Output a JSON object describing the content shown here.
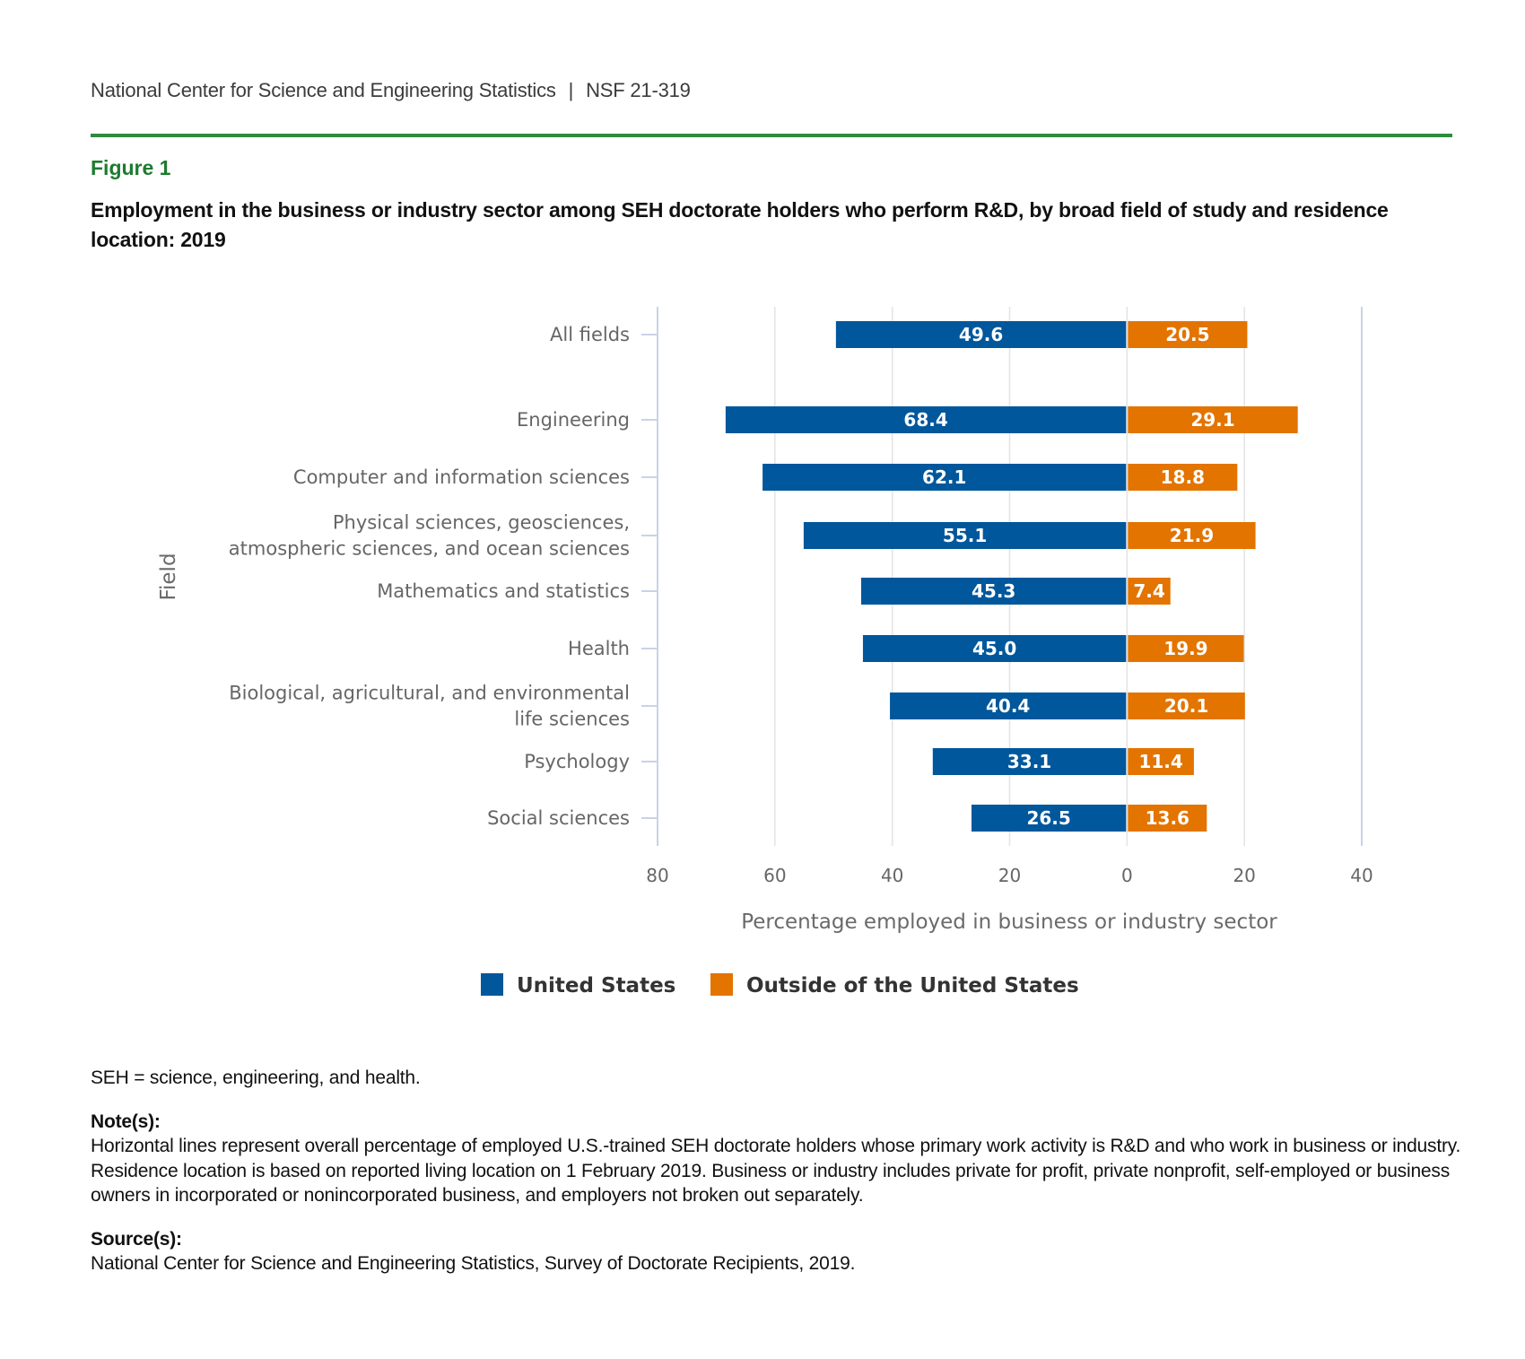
{
  "header": {
    "org": "National Center for Science and Engineering Statistics",
    "separator": "|",
    "report_id": "NSF 21-319"
  },
  "figure": {
    "label": "Figure 1",
    "title": "Employment in the business or industry sector among SEH doctorate holders who perform R&D, by broad field of study and residence location: 2019"
  },
  "colors": {
    "us": "#00579c",
    "outside": "#e37400",
    "grid": "#e3e3e3",
    "axis": "#c9d3e8",
    "rule": "#2e8b3e"
  },
  "chart_data": {
    "type": "bar",
    "orientation": "horizontal-diverging",
    "title": "Employment in the business or industry sector among SEH doctorate holders who perform R&D, by broad field of study and residence location: 2019",
    "xlabel": "Percentage employed in business or industry sector",
    "ylabel": "Field",
    "xlim": [
      -80,
      40
    ],
    "x_ticks": [
      -80,
      -60,
      -40,
      -20,
      0,
      20,
      40
    ],
    "x_tick_labels": [
      "80",
      "60",
      "40",
      "20",
      "0",
      "20",
      "40"
    ],
    "grid": true,
    "legend_position": "bottom-center",
    "categories": [
      [
        "All fields"
      ],
      [
        "Engineering"
      ],
      [
        "Computer and information sciences"
      ],
      [
        "Physical sciences, geosciences,",
        "atmospheric sciences, and ocean sciences"
      ],
      [
        "Mathematics and statistics"
      ],
      [
        "Health"
      ],
      [
        "Biological, agricultural, and environmental",
        "life sciences"
      ],
      [
        "Psychology"
      ],
      [
        "Social sciences"
      ]
    ],
    "series": [
      {
        "name": "United States",
        "direction": "left",
        "values": [
          49.6,
          68.4,
          62.1,
          55.1,
          45.3,
          45.0,
          40.4,
          33.1,
          26.5
        ],
        "labels": [
          "49.6",
          "68.4",
          "62.1",
          "55.1",
          "45.3",
          "45.0",
          "40.4",
          "33.1",
          "26.5"
        ]
      },
      {
        "name": "Outside of the United States",
        "direction": "right",
        "values": [
          20.5,
          29.1,
          18.8,
          21.9,
          7.4,
          19.9,
          20.1,
          11.4,
          13.6
        ],
        "labels": [
          "20.5",
          "29.1",
          "18.8",
          "21.9",
          "7.4",
          "19.9",
          "20.1",
          "11.4",
          "13.6"
        ]
      }
    ]
  },
  "footer": {
    "abbrev": "SEH = science, engineering, and health.",
    "notes_heading": "Note(s):",
    "notes_text": "Horizontal lines represent overall percentage of employed U.S.-trained SEH doctorate holders whose primary work activity is R&D and who work in business or industry. Residence location is based on reported living location on 1 February 2019. Business or industry includes private for profit, private nonprofit, self-employed or business owners in incorporated or nonincorporated business, and employers not broken out separately.",
    "source_heading": "Source(s):",
    "source_text": "National Center for Science and Engineering Statistics, Survey of Doctorate Recipients, 2019."
  }
}
